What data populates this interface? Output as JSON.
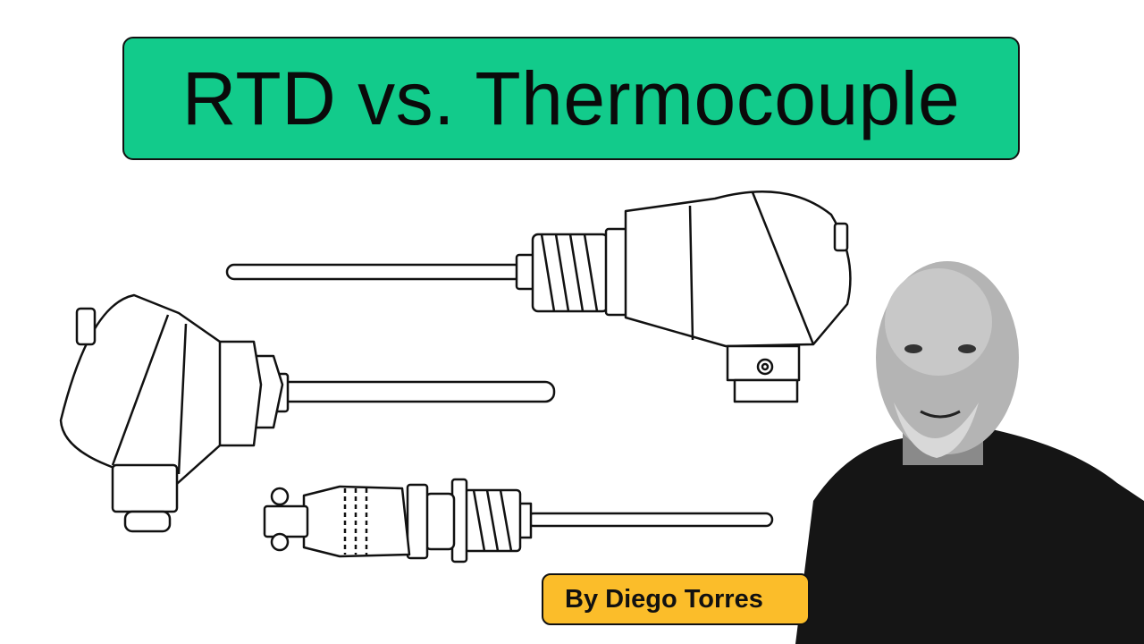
{
  "title": "RTD vs. Thermocouple",
  "author_badge": "By Diego Torres",
  "colors": {
    "title_bg": "#12cb8b",
    "badge_bg": "#fbbd2a",
    "outline": "#111111"
  },
  "illustrations": [
    "connection-head-sensor-right",
    "connection-head-sensor-left",
    "threaded-connector-sensor",
    "presenter-photo"
  ]
}
